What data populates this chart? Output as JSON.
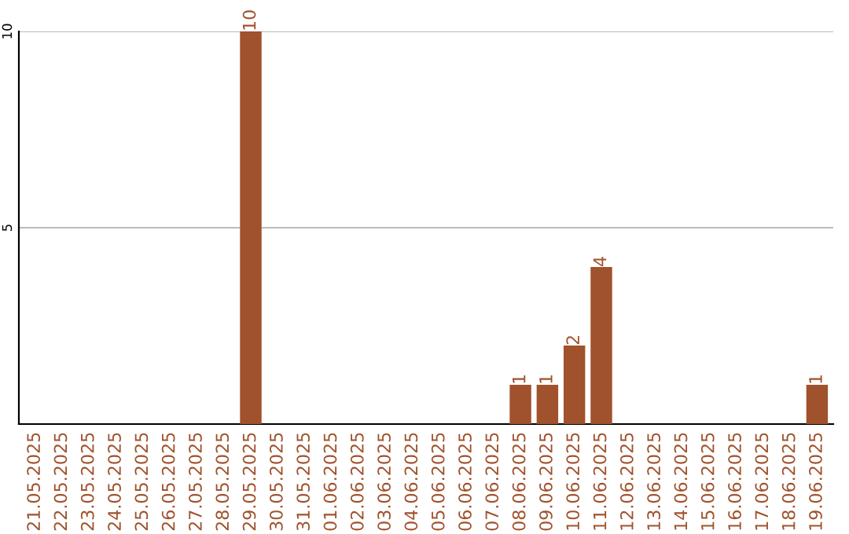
{
  "chart_data": {
    "type": "bar",
    "categories": [
      "21.05.2025",
      "22.05.2025",
      "23.05.2025",
      "24.05.2025",
      "25.05.2025",
      "26.05.2025",
      "27.05.2025",
      "28.05.2025",
      "29.05.2025",
      "30.05.2025",
      "31.05.2025",
      "01.06.2025",
      "02.06.2025",
      "03.06.2025",
      "04.06.2025",
      "05.06.2025",
      "06.06.2025",
      "07.06.2025",
      "08.06.2025",
      "09.06.2025",
      "10.06.2025",
      "11.06.2025",
      "12.06.2025",
      "13.06.2025",
      "14.06.2025",
      "15.06.2025",
      "16.06.2025",
      "17.06.2025",
      "18.06.2025",
      "19.06.2025"
    ],
    "values": [
      0,
      0,
      0,
      0,
      0,
      0,
      0,
      0,
      10,
      0,
      0,
      0,
      0,
      0,
      0,
      0,
      0,
      0,
      1,
      1,
      2,
      4,
      0,
      0,
      0,
      0,
      0,
      0,
      0,
      1
    ],
    "value_labels": [
      null,
      null,
      null,
      null,
      null,
      null,
      null,
      null,
      "10",
      null,
      null,
      null,
      null,
      null,
      null,
      null,
      null,
      null,
      "1",
      "1",
      "2",
      "4",
      null,
      null,
      null,
      null,
      null,
      null,
      null,
      "1"
    ],
    "color": "#a0522d",
    "ylim": [
      0,
      10
    ],
    "yticks": [
      5,
      10
    ],
    "grid": "y"
  }
}
